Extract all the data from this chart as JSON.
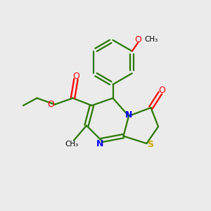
{
  "bg_color": "#ebebeb",
  "bond_color": "#2a7800",
  "bond_width": 1.6,
  "n_color": "#0000ff",
  "o_color": "#ff0000",
  "s_color": "#ccaa00",
  "text_color": "#000000",
  "fig_size": [
    3.0,
    3.0
  ],
  "dpi": 100,
  "xlim": [
    0,
    10
  ],
  "ylim": [
    0,
    10
  ],
  "atoms": {
    "bx": 5.35,
    "by": 7.05,
    "br": 1.05,
    "C6x": 5.35,
    "C6y": 5.35,
    "C7x": 4.35,
    "C7y": 5.0,
    "C8x": 4.1,
    "C8y": 4.05,
    "N1x": 4.8,
    "N1y": 3.35,
    "C2x": 5.85,
    "C2y": 3.55,
    "Nx": 6.1,
    "Ny": 4.5,
    "C4x": 7.15,
    "C4y": 4.9,
    "C3x": 7.5,
    "C3y": 4.0,
    "Sx": 6.95,
    "Sy": 3.2,
    "O4x": 7.6,
    "O4y": 5.6,
    "ecx": 3.45,
    "ecy": 5.35,
    "eo1x": 3.6,
    "eo1y": 6.25,
    "eo2x": 2.6,
    "eo2y": 5.05,
    "eth1x": 1.75,
    "eth1y": 5.35,
    "eth2x": 1.1,
    "eth2y": 5.0,
    "ch3x": 3.5,
    "ch3y": 3.35
  }
}
